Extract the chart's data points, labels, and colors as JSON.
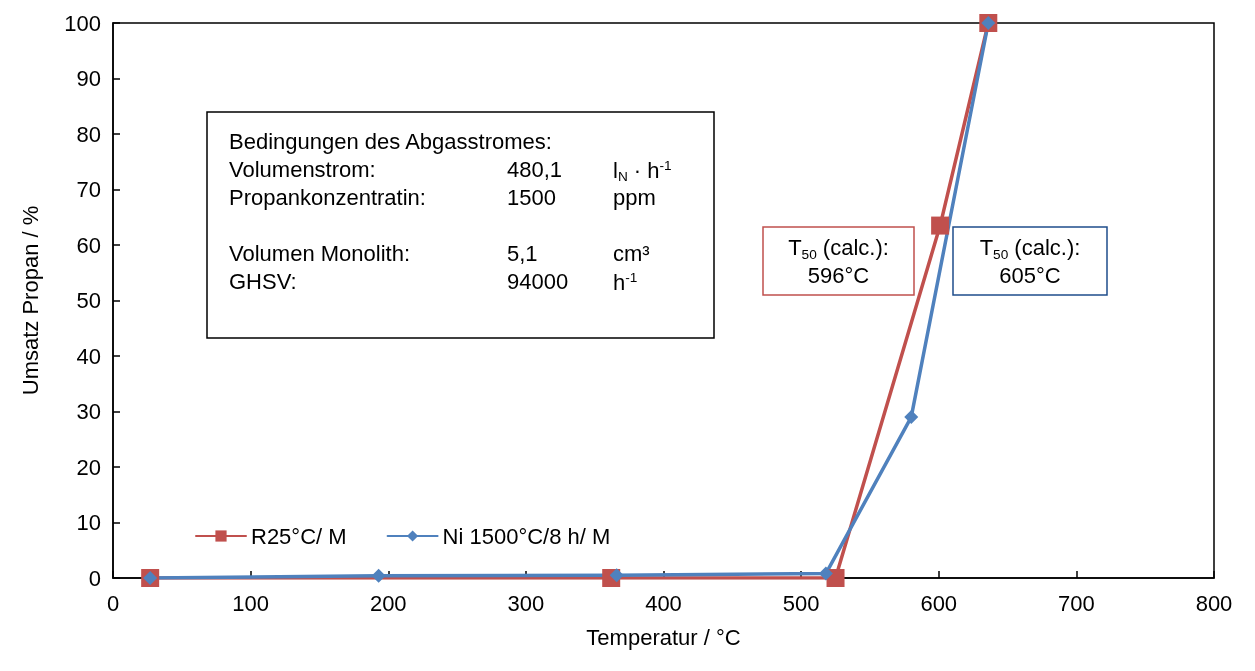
{
  "chart_data": {
    "type": "line",
    "xlabel": "Temperatur / °C",
    "ylabel": "Umsatz Propan / %",
    "xlim": [
      0,
      800
    ],
    "xticks": [
      0,
      100,
      200,
      300,
      400,
      500,
      600,
      700,
      800
    ],
    "ylim": [
      0,
      100
    ],
    "yticks": [
      0,
      10,
      20,
      30,
      40,
      50,
      60,
      70,
      80,
      90,
      100
    ],
    "grid": false,
    "legend": "bottom left",
    "line_style": "solid",
    "series": [
      {
        "name": "R25°C/ M",
        "color": "#c0504d",
        "marker": "square",
        "x": [
          27,
          362,
          525,
          601,
          636
        ],
        "values": [
          0,
          0,
          0,
          63.5,
          100
        ]
      },
      {
        "name": "Ni 1500°C/8 h/ M",
        "color": "#4f81bd",
        "marker": "diamond",
        "x": [
          27,
          193,
          366,
          518,
          580,
          636
        ],
        "values": [
          0,
          0.4,
          0.5,
          0.8,
          29,
          100
        ]
      }
    ],
    "annotations": [
      "Bedingungen des Abgasstromes:\nVolumenstrom:\t480,1\tl$_{N}$ · h$^{-1}$\nPropankonzentratin:\t1500\tppm\n\nVolumen Monolith:\t5,1\tcm³\nGHSV:\t94000\th$^{-1}$",
      "T$_{50}$ (calc.):\n596°C",
      "T$_{50}$ (calc.):\n605°C"
    ]
  }
}
